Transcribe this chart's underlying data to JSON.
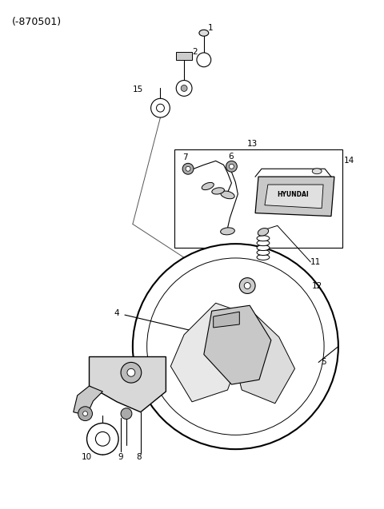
{
  "title": "(-870501)",
  "bg_color": "#ffffff",
  "line_color": "#000000",
  "title_fontsize": 9,
  "label_fontsize": 7.5,
  "figsize": [
    4.8,
    6.37
  ],
  "dpi": 100
}
